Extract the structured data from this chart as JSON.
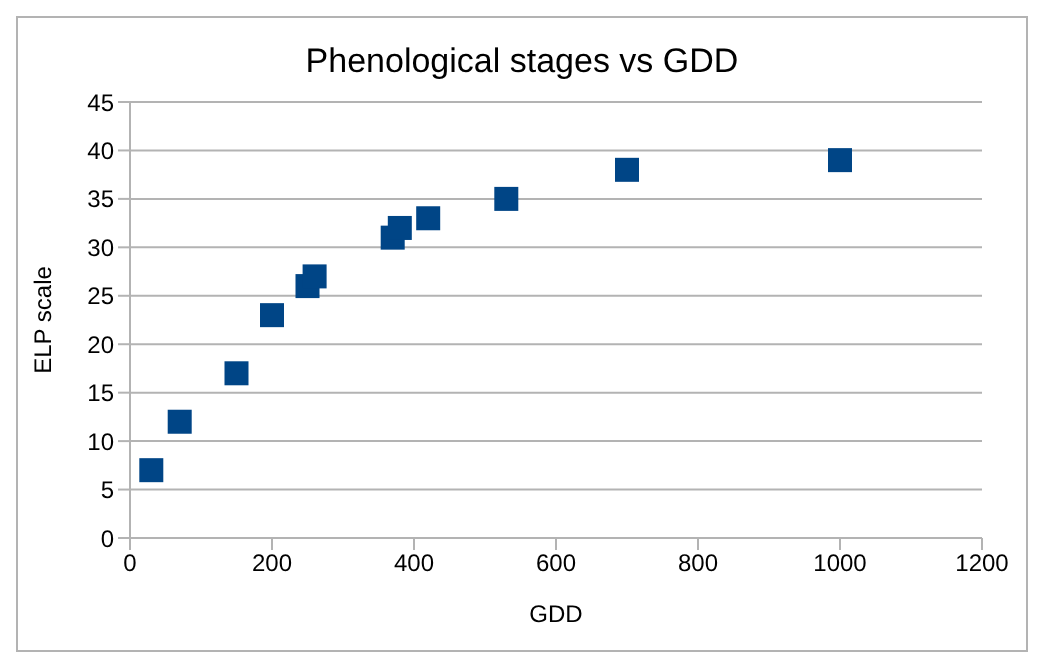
{
  "chart_data": {
    "type": "scatter",
    "title": "Phenological stages vs GDD",
    "xlabel": "GDD",
    "ylabel": "ELP scale",
    "x": [
      30,
      70,
      150,
      200,
      250,
      260,
      370,
      380,
      420,
      530,
      700,
      1000
    ],
    "values": [
      7,
      12,
      17,
      23,
      26,
      27,
      31,
      32,
      33,
      35,
      38,
      39
    ],
    "color": "#004586",
    "marker": "square",
    "xlim": [
      0,
      1200
    ],
    "xticks": [
      0,
      200,
      400,
      600,
      800,
      1000,
      1200
    ],
    "ylim": [
      0,
      45
    ],
    "yticks": [
      0,
      5,
      10,
      15,
      20,
      25,
      30,
      35,
      40,
      45
    ],
    "grid": "y",
    "legend": false
  }
}
